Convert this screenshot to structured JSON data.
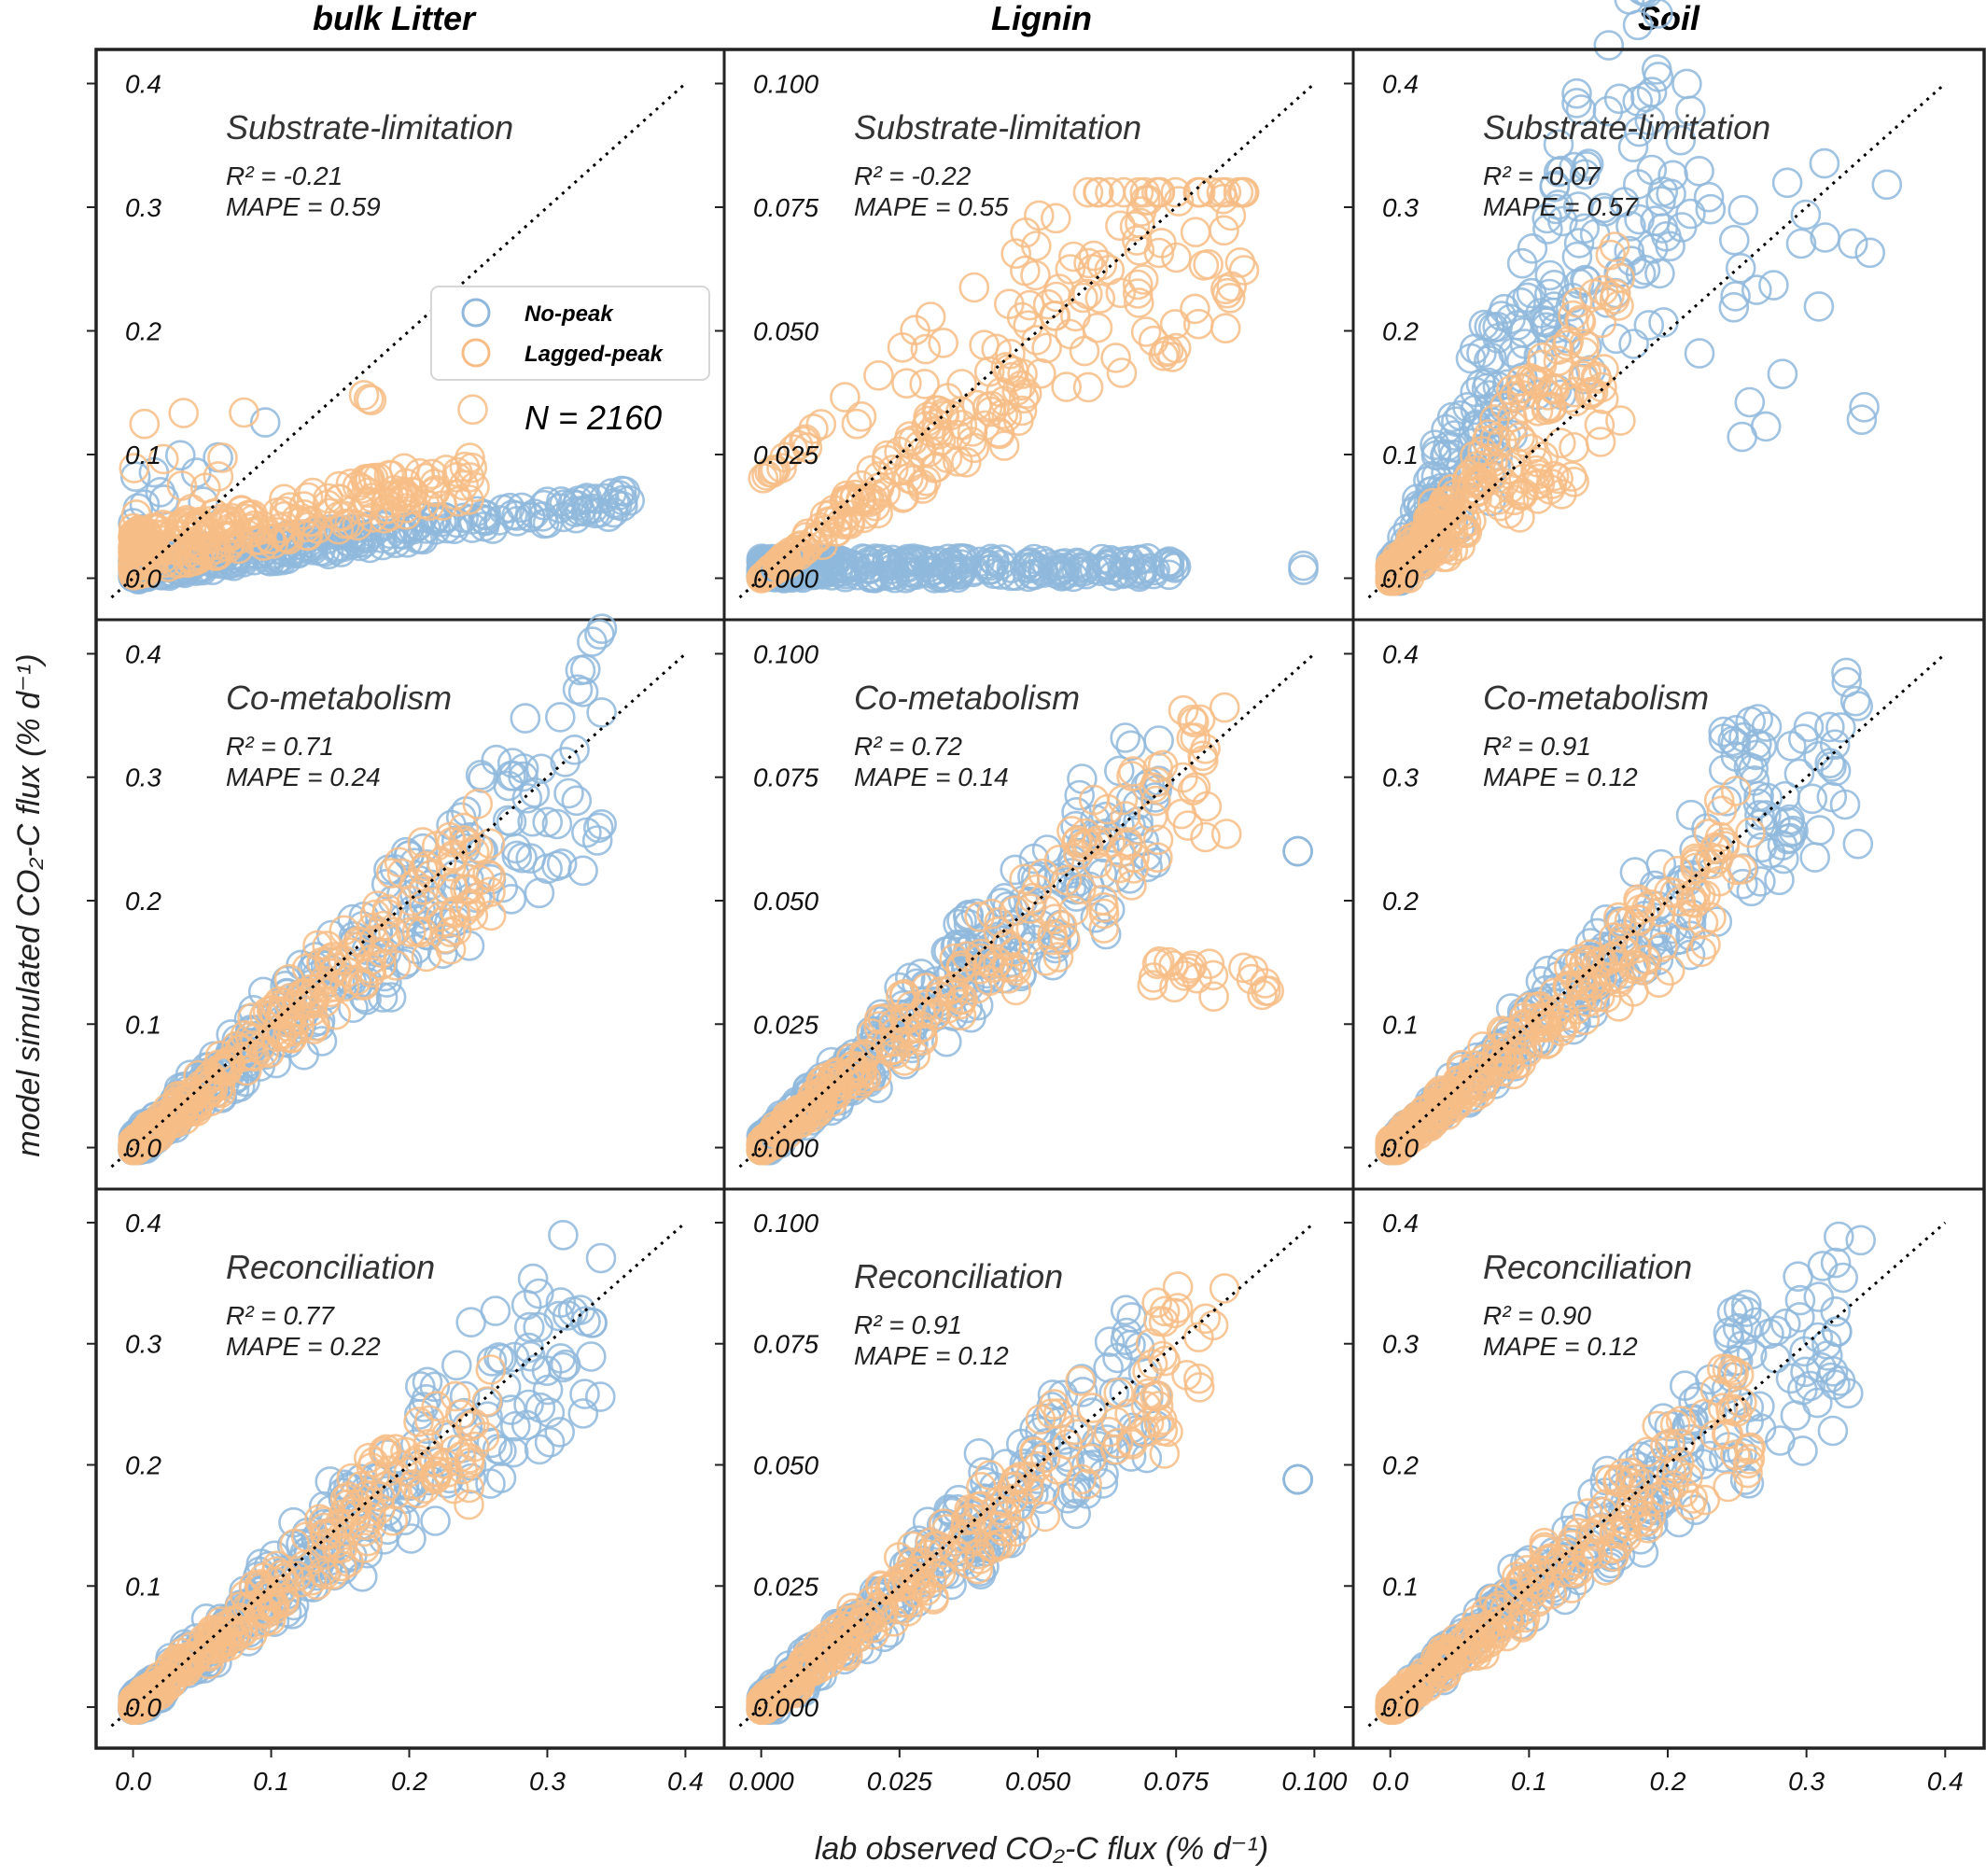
{
  "figure": {
    "xlabel": "lab observed CO₂-C flux (%  d⁻¹)",
    "ylabel": "model simulated CO₂-C flux (%  d⁻¹)",
    "columns": [
      "bulk Litter",
      "Lignin",
      "Soil"
    ],
    "models": [
      "Substrate-limitation",
      "Co-metabolism",
      "Reconciliation"
    ],
    "legend": {
      "items": [
        {
          "label": "No-peak",
          "color": "#8fb8dc"
        },
        {
          "label": "Lagged-peak",
          "color": "#f7bd86"
        }
      ],
      "n_label": "N = 2160"
    }
  },
  "chart_data": [
    {
      "type": "scatter",
      "row": 0,
      "col": 0,
      "material": "bulk Litter",
      "model": "Substrate-limitation",
      "r2": "R² = -0.21",
      "mape": "MAPE = 0.59",
      "r2_value": -0.21,
      "mape_value": 0.59,
      "xlim": [
        -0.02,
        0.42
      ],
      "ylim": [
        -0.02,
        0.42
      ],
      "ticks": [
        "0.0",
        "0.1",
        "0.2",
        "0.3",
        "0.4"
      ],
      "tick_values": [
        0,
        0.1,
        0.2,
        0.3,
        0.4
      ]
    },
    {
      "type": "scatter",
      "row": 0,
      "col": 1,
      "material": "Lignin",
      "model": "Substrate-limitation",
      "r2": "R² = -0.22",
      "mape": "MAPE = 0.55",
      "r2_value": -0.22,
      "mape_value": 0.55,
      "xlim": [
        -0.005,
        0.105
      ],
      "ylim": [
        -0.005,
        0.105
      ],
      "ticks": [
        "0.000",
        "0.025",
        "0.050",
        "0.075",
        "0.100"
      ],
      "tick_values": [
        0,
        0.025,
        0.05,
        0.075,
        0.1
      ]
    },
    {
      "type": "scatter",
      "row": 0,
      "col": 2,
      "material": "Soil",
      "model": "Substrate-limitation",
      "r2": "R² = -0.07",
      "mape": "MAPE = 0.57",
      "r2_value": -0.07,
      "mape_value": 0.57,
      "xlim": [
        -0.02,
        0.42
      ],
      "ylim": [
        -0.02,
        0.42
      ],
      "ticks": [
        "0.0",
        "0.1",
        "0.2",
        "0.3",
        "0.4"
      ],
      "tick_values": [
        0,
        0.1,
        0.2,
        0.3,
        0.4
      ]
    },
    {
      "type": "scatter",
      "row": 1,
      "col": 0,
      "material": "bulk Litter",
      "model": "Co-metabolism",
      "r2": "R² = 0.71",
      "mape": "MAPE = 0.24",
      "r2_value": 0.71,
      "mape_value": 0.24,
      "xlim": [
        -0.02,
        0.42
      ],
      "ylim": [
        -0.02,
        0.42
      ],
      "ticks": [
        "0.0",
        "0.1",
        "0.2",
        "0.3",
        "0.4"
      ],
      "tick_values": [
        0,
        0.1,
        0.2,
        0.3,
        0.4
      ]
    },
    {
      "type": "scatter",
      "row": 1,
      "col": 1,
      "material": "Lignin",
      "model": "Co-metabolism",
      "r2": "R² = 0.72",
      "mape": "MAPE = 0.14",
      "r2_value": 0.72,
      "mape_value": 0.14,
      "xlim": [
        -0.005,
        0.105
      ],
      "ylim": [
        -0.005,
        0.105
      ],
      "ticks": [
        "0.000",
        "0.025",
        "0.050",
        "0.075",
        "0.100"
      ],
      "tick_values": [
        0,
        0.025,
        0.05,
        0.075,
        0.1
      ]
    },
    {
      "type": "scatter",
      "row": 1,
      "col": 2,
      "material": "Soil",
      "model": "Co-metabolism",
      "r2": "R² = 0.91",
      "mape": "MAPE = 0.12",
      "r2_value": 0.91,
      "mape_value": 0.12,
      "xlim": [
        -0.02,
        0.42
      ],
      "ylim": [
        -0.02,
        0.42
      ],
      "ticks": [
        "0.0",
        "0.1",
        "0.2",
        "0.3",
        "0.4"
      ],
      "tick_values": [
        0,
        0.1,
        0.2,
        0.3,
        0.4
      ]
    },
    {
      "type": "scatter",
      "row": 2,
      "col": 0,
      "material": "bulk Litter",
      "model": "Reconciliation",
      "r2": "R² = 0.77",
      "mape": "MAPE = 0.22",
      "r2_value": 0.77,
      "mape_value": 0.22,
      "xlim": [
        -0.02,
        0.42
      ],
      "ylim": [
        -0.02,
        0.42
      ],
      "ticks": [
        "0.0",
        "0.1",
        "0.2",
        "0.3",
        "0.4"
      ],
      "tick_values": [
        0,
        0.1,
        0.2,
        0.3,
        0.4
      ]
    },
    {
      "type": "scatter",
      "row": 2,
      "col": 1,
      "material": "Lignin",
      "model": "Reconciliation",
      "r2": "R² = 0.91",
      "mape": "MAPE = 0.12",
      "r2_value": 0.91,
      "mape_value": 0.12,
      "xlim": [
        -0.005,
        0.105
      ],
      "ylim": [
        -0.005,
        0.105
      ],
      "ticks": [
        "0.000",
        "0.025",
        "0.050",
        "0.075",
        "0.100"
      ],
      "tick_values": [
        0,
        0.025,
        0.05,
        0.075,
        0.1
      ]
    },
    {
      "type": "scatter",
      "row": 2,
      "col": 2,
      "material": "Soil",
      "model": "Reconciliation",
      "r2": "R² = 0.90",
      "mape": "MAPE = 0.12",
      "r2_value": 0.9,
      "mape_value": 0.12,
      "xlim": [
        -0.02,
        0.42
      ],
      "ylim": [
        -0.02,
        0.42
      ],
      "ticks": [
        "0.0",
        "0.1",
        "0.2",
        "0.3",
        "0.4"
      ],
      "tick_values": [
        0,
        0.1,
        0.2,
        0.3,
        0.4
      ]
    }
  ]
}
